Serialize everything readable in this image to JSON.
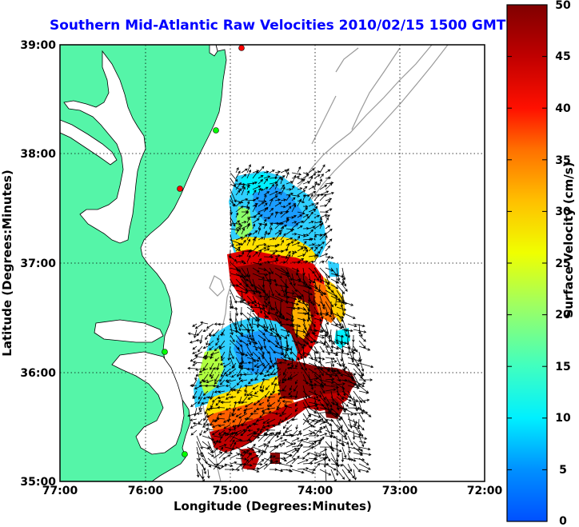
{
  "title": "Southern Mid-Atlantic Raw Velocities 2010/02/15 1500 GMT",
  "axes": {
    "xlabel": "Longitude (Degrees:Minutes)",
    "ylabel": "Latitude (Degrees:Minutes)",
    "xticks": [
      "77:00",
      "76:00",
      "75:00",
      "74:00",
      "73:00",
      "72:00"
    ],
    "yticks": [
      "39:00",
      "38:00",
      "37:00",
      "36:00",
      "35:00"
    ],
    "grid": true
  },
  "colorbar": {
    "label": "Surface Velocity (cm/s)",
    "ticks": [
      "50",
      "45",
      "40",
      "35",
      "30",
      "25",
      "20",
      "15",
      "10",
      "5",
      "0"
    ],
    "min": 0,
    "max": 50
  },
  "colors": {
    "land": "#55f5a8",
    "title": "#0000ff",
    "vectors": "#000000",
    "bathymetry": "#9a9a9a"
  }
}
